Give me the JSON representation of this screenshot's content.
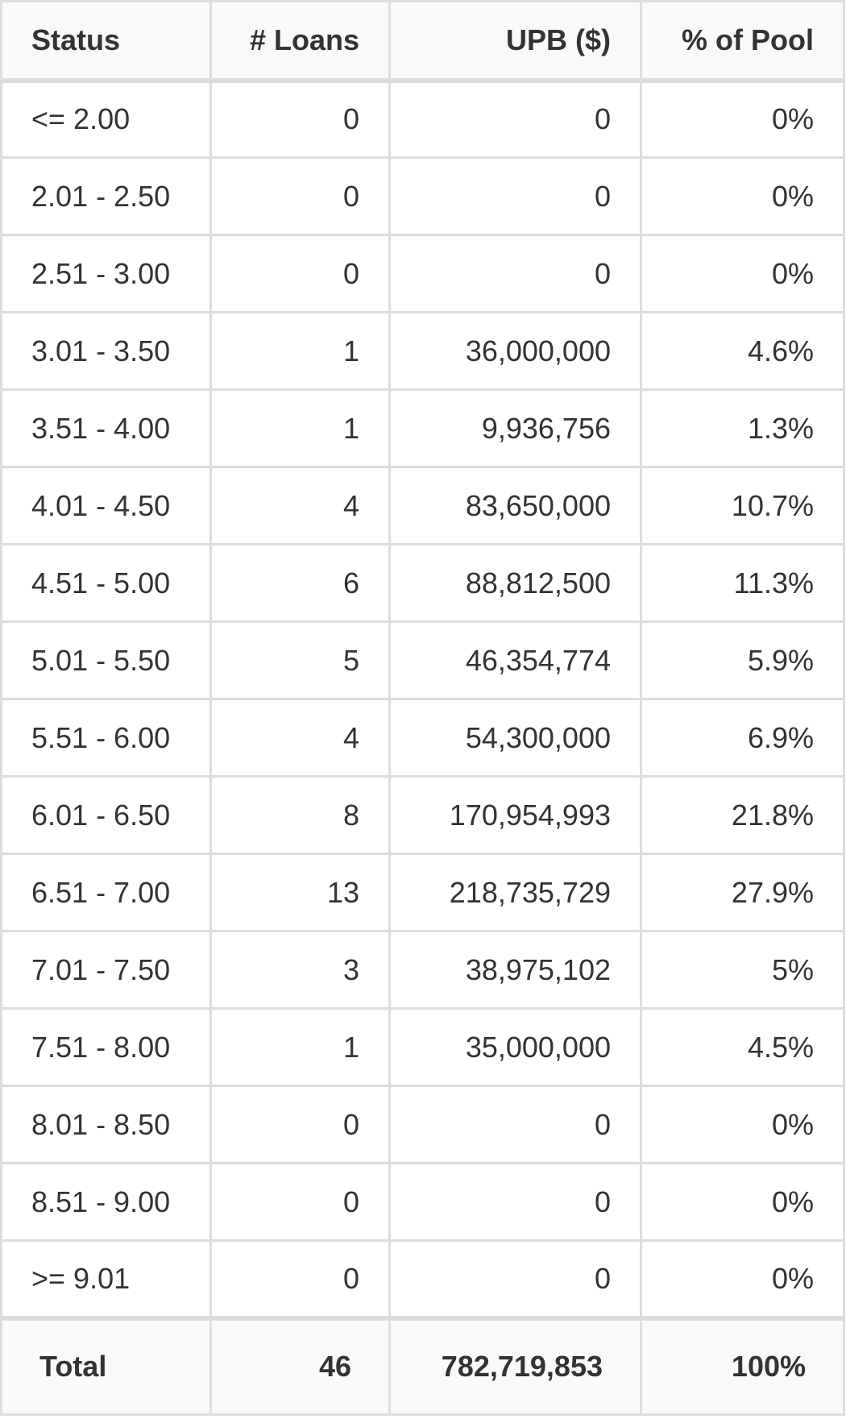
{
  "table": {
    "headers": [
      "Status",
      "# Loans",
      "UPB ($)",
      "% of Pool"
    ],
    "rows": [
      [
        "<= 2.00",
        "0",
        "0",
        "0%"
      ],
      [
        "2.01 - 2.50",
        "0",
        "0",
        "0%"
      ],
      [
        "2.51 - 3.00",
        "0",
        "0",
        "0%"
      ],
      [
        "3.01 - 3.50",
        "1",
        "36,000,000",
        "4.6%"
      ],
      [
        "3.51 - 4.00",
        "1",
        "9,936,756",
        "1.3%"
      ],
      [
        "4.01 - 4.50",
        "4",
        "83,650,000",
        "10.7%"
      ],
      [
        "4.51 - 5.00",
        "6",
        "88,812,500",
        "11.3%"
      ],
      [
        "5.01 - 5.50",
        "5",
        "46,354,774",
        "5.9%"
      ],
      [
        "5.51 - 6.00",
        "4",
        "54,300,000",
        "6.9%"
      ],
      [
        "6.01 - 6.50",
        "8",
        "170,954,993",
        "21.8%"
      ],
      [
        "6.51 - 7.00",
        "13",
        "218,735,729",
        "27.9%"
      ],
      [
        "7.01 - 7.50",
        "3",
        "38,975,102",
        "5%"
      ],
      [
        "7.51 - 8.00",
        "1",
        "35,000,000",
        "4.5%"
      ],
      [
        "8.01 - 8.50",
        "0",
        "0",
        "0%"
      ],
      [
        "8.51 - 9.00",
        "0",
        "0",
        "0%"
      ],
      [
        ">= 9.01",
        "0",
        "0",
        "0%"
      ]
    ],
    "total": [
      "Total",
      "46",
      "782,719,853",
      "100%"
    ]
  }
}
